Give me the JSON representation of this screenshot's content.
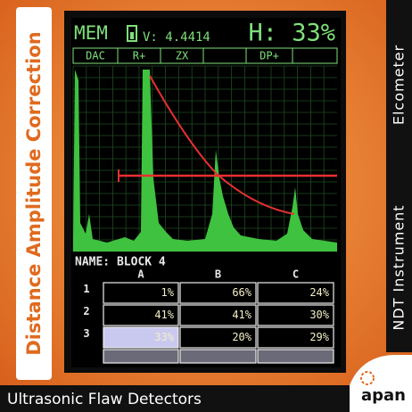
{
  "sidebar": {
    "title": "Distance Amplitude Correction",
    "category": "NDT Instrument",
    "brand": "Elcometer"
  },
  "footer": {
    "text": "Ultrasonic Flaw Detectors",
    "logo": "apan"
  },
  "screen": {
    "mode": "MEM",
    "voltage": "V: 4.4414",
    "gain": "H: 33%",
    "tabs": [
      "DAC",
      "R+",
      "ZX",
      "DP+"
    ],
    "name": "NAME: BLOCK 4",
    "table": {
      "columns": [
        "A",
        "B",
        "C"
      ],
      "rows": [
        {
          "label": "1",
          "cells": [
            "1%",
            "66%",
            "24%"
          ]
        },
        {
          "label": "2",
          "cells": [
            "41%",
            "41%",
            "30%"
          ]
        },
        {
          "label": "3",
          "cells": [
            "33%",
            "20%",
            "29%"
          ]
        }
      ]
    }
  }
}
